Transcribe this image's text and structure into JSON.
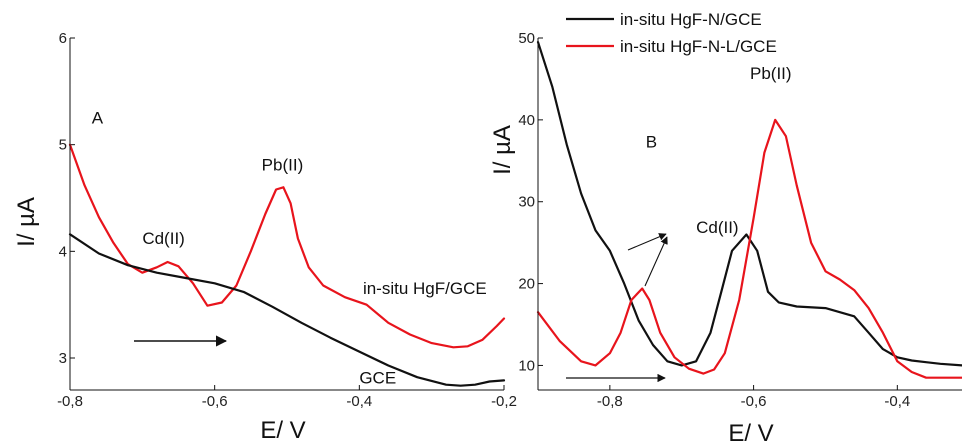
{
  "chart_data": [
    {
      "type": "line",
      "panel_label": "A",
      "xlabel": "E/ V",
      "ylabel": "I/ µA",
      "xlim": [
        -0.8,
        -0.2
      ],
      "ylim": [
        2.7,
        6.0
      ],
      "xticks": [
        -0.8,
        -0.6,
        -0.4,
        -0.2
      ],
      "xtick_labels": [
        "-0,8",
        "-0,6",
        "-0,4",
        "-0,2"
      ],
      "yticks": [
        3,
        4,
        5,
        6
      ],
      "ytick_labels": [
        "3",
        "4",
        "5",
        "6"
      ],
      "grid": false,
      "legend": "none",
      "series": [
        {
          "name": "in-situ HgF/GCE",
          "color": "#e8141c",
          "x": [
            -0.8,
            -0.78,
            -0.76,
            -0.74,
            -0.72,
            -0.7,
            -0.68,
            -0.665,
            -0.65,
            -0.63,
            -0.61,
            -0.59,
            -0.57,
            -0.55,
            -0.53,
            -0.515,
            -0.505,
            -0.495,
            -0.485,
            -0.47,
            -0.45,
            -0.42,
            -0.39,
            -0.36,
            -0.33,
            -0.3,
            -0.27,
            -0.25,
            -0.23,
            -0.21,
            -0.2
          ],
          "y": [
            5.0,
            4.62,
            4.32,
            4.08,
            3.88,
            3.8,
            3.85,
            3.9,
            3.86,
            3.7,
            3.49,
            3.52,
            3.68,
            4.0,
            4.35,
            4.58,
            4.6,
            4.45,
            4.12,
            3.85,
            3.68,
            3.57,
            3.5,
            3.33,
            3.22,
            3.14,
            3.1,
            3.11,
            3.17,
            3.3,
            3.37
          ]
        },
        {
          "name": "GCE",
          "color": "#111111",
          "x": [
            -0.8,
            -0.76,
            -0.72,
            -0.68,
            -0.64,
            -0.6,
            -0.56,
            -0.52,
            -0.48,
            -0.44,
            -0.4,
            -0.36,
            -0.32,
            -0.28,
            -0.26,
            -0.24,
            -0.22,
            -0.2
          ],
          "y": [
            4.16,
            3.98,
            3.87,
            3.8,
            3.75,
            3.7,
            3.62,
            3.48,
            3.33,
            3.19,
            3.06,
            2.93,
            2.82,
            2.75,
            2.74,
            2.75,
            2.78,
            2.79
          ]
        }
      ],
      "annotations": [
        {
          "text": "A",
          "x": -0.77,
          "y": 5.2
        },
        {
          "text": "Cd(II)",
          "x": -0.7,
          "y": 4.07
        },
        {
          "text": "Pb(II)",
          "x": -0.535,
          "y": 4.76
        },
        {
          "text": "in-situ HgF/GCE",
          "x": -0.395,
          "y": 3.6
        },
        {
          "text": "GCE",
          "x": -0.4,
          "y": 2.76
        }
      ]
    },
    {
      "type": "line",
      "panel_label": "B",
      "xlabel": "E/ V",
      "ylabel": "I/ µA",
      "xlim": [
        -0.9,
        -0.31
      ],
      "ylim": [
        7,
        50
      ],
      "xticks": [
        -0.8,
        -0.6,
        -0.4
      ],
      "xtick_labels": [
        "-0,8",
        "-0,6",
        "-0,4"
      ],
      "yticks": [
        10,
        20,
        30,
        40,
        50
      ],
      "ytick_labels": [
        "10",
        "20",
        "30",
        "40",
        "50"
      ],
      "grid": false,
      "legend": "top-left",
      "series": [
        {
          "name": "in-situ HgF-N/GCE",
          "color": "#111111",
          "x": [
            -0.9,
            -0.88,
            -0.86,
            -0.84,
            -0.82,
            -0.8,
            -0.78,
            -0.76,
            -0.74,
            -0.72,
            -0.7,
            -0.68,
            -0.66,
            -0.645,
            -0.63,
            -0.61,
            -0.595,
            -0.58,
            -0.565,
            -0.54,
            -0.5,
            -0.46,
            -0.44,
            -0.42,
            -0.4,
            -0.38,
            -0.36,
            -0.34,
            -0.31
          ],
          "y": [
            49.5,
            44.0,
            37.0,
            31.0,
            26.5,
            24.0,
            20.0,
            15.5,
            12.5,
            10.5,
            10.0,
            10.5,
            14.0,
            19.0,
            24.0,
            26.0,
            24.0,
            19.0,
            17.7,
            17.2,
            17.0,
            16.0,
            14.0,
            12.0,
            11.0,
            10.6,
            10.4,
            10.2,
            10.0
          ]
        },
        {
          "name": "in-situ HgF-N-L/GCE",
          "color": "#e8141c",
          "x": [
            -0.9,
            -0.87,
            -0.84,
            -0.82,
            -0.8,
            -0.785,
            -0.77,
            -0.755,
            -0.745,
            -0.73,
            -0.71,
            -0.69,
            -0.67,
            -0.655,
            -0.64,
            -0.62,
            -0.6,
            -0.585,
            -0.57,
            -0.555,
            -0.54,
            -0.52,
            -0.5,
            -0.48,
            -0.46,
            -0.44,
            -0.42,
            -0.4,
            -0.38,
            -0.36,
            -0.34,
            -0.31
          ],
          "y": [
            16.5,
            13.0,
            10.5,
            10.0,
            11.5,
            14.0,
            18.0,
            19.4,
            18.0,
            14.0,
            11.0,
            9.6,
            9.0,
            9.5,
            11.5,
            18.0,
            28.0,
            36.0,
            40.0,
            38.0,
            32.0,
            25.0,
            21.5,
            20.5,
            19.2,
            17.0,
            14.0,
            10.5,
            9.2,
            8.5,
            8.5,
            8.5
          ]
        }
      ],
      "annotations": [
        {
          "text": "B",
          "x": -0.75,
          "y": 36.6
        },
        {
          "text": "Cd(II)",
          "x": -0.68,
          "y": 26.2
        },
        {
          "text": "Pb(II)",
          "x": -0.605,
          "y": 45.0
        }
      ]
    }
  ]
}
